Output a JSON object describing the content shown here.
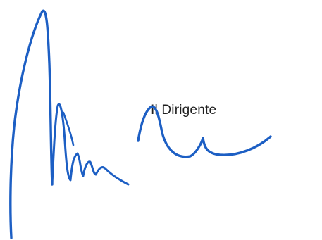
{
  "signature_block": {
    "title": "Il Dirigente"
  },
  "signature": {
    "ink_color": "#1d5fc4"
  },
  "colors": {
    "background": "#ffffff",
    "rule": "#1a1a1a",
    "text": "#1f1f1f"
  }
}
